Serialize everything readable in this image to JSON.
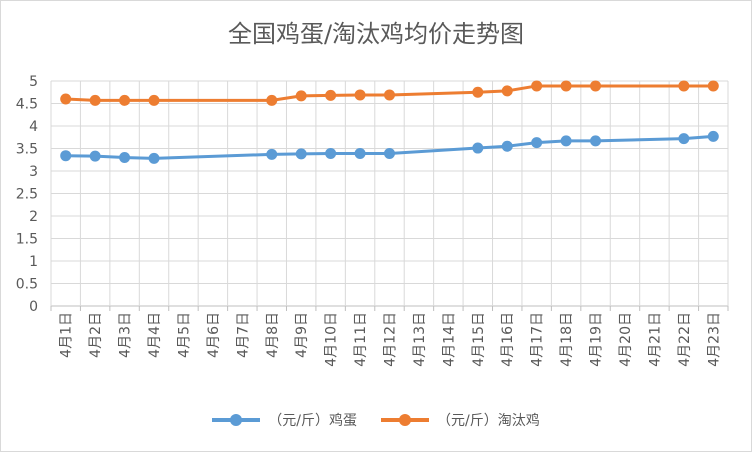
{
  "chart_data": {
    "type": "line",
    "title": "全国鸡蛋/淘汰鸡均价走势图",
    "categories": [
      "4月1日",
      "4月2日",
      "4月3日",
      "4月4日",
      "4月5日",
      "4月6日",
      "4月7日",
      "4月8日",
      "4月9日",
      "4月10日",
      "4月11日",
      "4月12日",
      "4月13日",
      "4月14日",
      "4月15日",
      "4月16日",
      "4月17日",
      "4月18日",
      "4月19日",
      "4月20日",
      "4月21日",
      "4月22日",
      "4月23日"
    ],
    "series": [
      {
        "name": "（元/斤）鸡蛋",
        "color": "#5B9BD5",
        "values": [
          3.34,
          3.33,
          3.3,
          3.28,
          null,
          null,
          null,
          3.37,
          3.38,
          3.39,
          3.39,
          3.39,
          null,
          null,
          3.51,
          3.55,
          3.63,
          3.67,
          3.67,
          null,
          null,
          3.72,
          3.77
        ]
      },
      {
        "name": "（元/斤）淘汰鸡",
        "color": "#ED7D31",
        "values": [
          4.6,
          4.57,
          4.57,
          4.57,
          null,
          null,
          null,
          4.57,
          4.67,
          4.68,
          4.69,
          4.69,
          null,
          null,
          4.75,
          4.78,
          4.89,
          4.89,
          4.89,
          null,
          null,
          4.89,
          4.89
        ]
      }
    ],
    "ylim": [
      0,
      5
    ],
    "yticks": [
      "0",
      "0.5",
      "1",
      "1.5",
      "2",
      "2.5",
      "3",
      "3.5",
      "4",
      "4.5",
      "5"
    ],
    "grid": true,
    "legend_position": "bottom"
  }
}
